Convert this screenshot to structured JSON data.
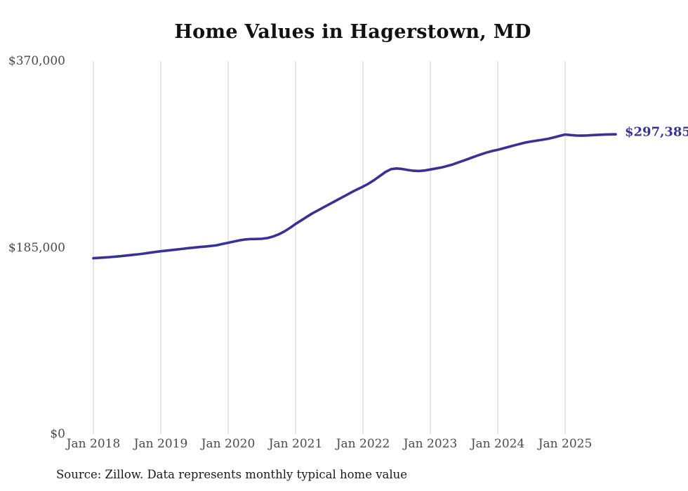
{
  "page": {
    "background": "#ffffff"
  },
  "chart": {
    "title": "Home Values in Hagerstown, MD",
    "source_note": "Source: Zillow. Data represents monthly typical home value",
    "latest_value_label": "$297,385",
    "colors": {
      "line": "#373296",
      "grid": "#cccccc",
      "tick_text": "#4a4a4a",
      "title_text": "#111111",
      "source_text": "#1a1a1a",
      "end_label_text": "#373296"
    }
  },
  "chart_data": {
    "type": "line",
    "title": "Home Values in Hagerstown, MD",
    "xlabel": "",
    "ylabel": "",
    "x_unit": "month",
    "x_range": [
      "2018-01",
      "2025-10"
    ],
    "ylim": [
      0,
      370000
    ],
    "grid": "vertical-only",
    "legend": "none",
    "y_ticks": [
      {
        "value": 0,
        "label": "$0"
      },
      {
        "value": 185000,
        "label": "$185,000"
      },
      {
        "value": 370000,
        "label": "$370,000"
      }
    ],
    "x_ticks": [
      {
        "index": 0,
        "label": "Jan 2018"
      },
      {
        "index": 12,
        "label": "Jan 2019"
      },
      {
        "index": 24,
        "label": "Jan 2020"
      },
      {
        "index": 36,
        "label": "Jan 2021"
      },
      {
        "index": 48,
        "label": "Jan 2022"
      },
      {
        "index": 60,
        "label": "Jan 2023"
      },
      {
        "index": 72,
        "label": "Jan 2024"
      },
      {
        "index": 84,
        "label": "Jan 2025"
      }
    ],
    "annotations": [
      {
        "text": "$297,385",
        "attach": "line-end"
      }
    ],
    "latest_value": 297385,
    "series": [
      {
        "name": "Typical home value (USD)",
        "start_month": "2018-01",
        "monthly_values": [
          174500,
          174800,
          175200,
          175600,
          176100,
          176600,
          177200,
          177800,
          178400,
          179100,
          179900,
          180700,
          181400,
          182000,
          182600,
          183200,
          183900,
          184500,
          185100,
          185600,
          186100,
          186700,
          187400,
          188600,
          189800,
          191000,
          192200,
          193100,
          193500,
          193600,
          193800,
          194500,
          196000,
          198200,
          201000,
          204500,
          208500,
          212000,
          215500,
          219000,
          222000,
          225000,
          228000,
          231000,
          234000,
          237000,
          240000,
          242800,
          245500,
          248500,
          252000,
          256000,
          260000,
          262800,
          263500,
          263000,
          262000,
          261200,
          261000,
          261500,
          262500,
          263500,
          264500,
          266000,
          267500,
          269500,
          271500,
          273500,
          275500,
          277500,
          279300,
          280800,
          282000,
          283500,
          285000,
          286500,
          288000,
          289300,
          290300,
          291200,
          292000,
          293000,
          294300,
          295800,
          297200,
          296600,
          296200,
          296100,
          296300,
          296600,
          296900,
          297100,
          297300,
          297385
        ]
      }
    ]
  }
}
